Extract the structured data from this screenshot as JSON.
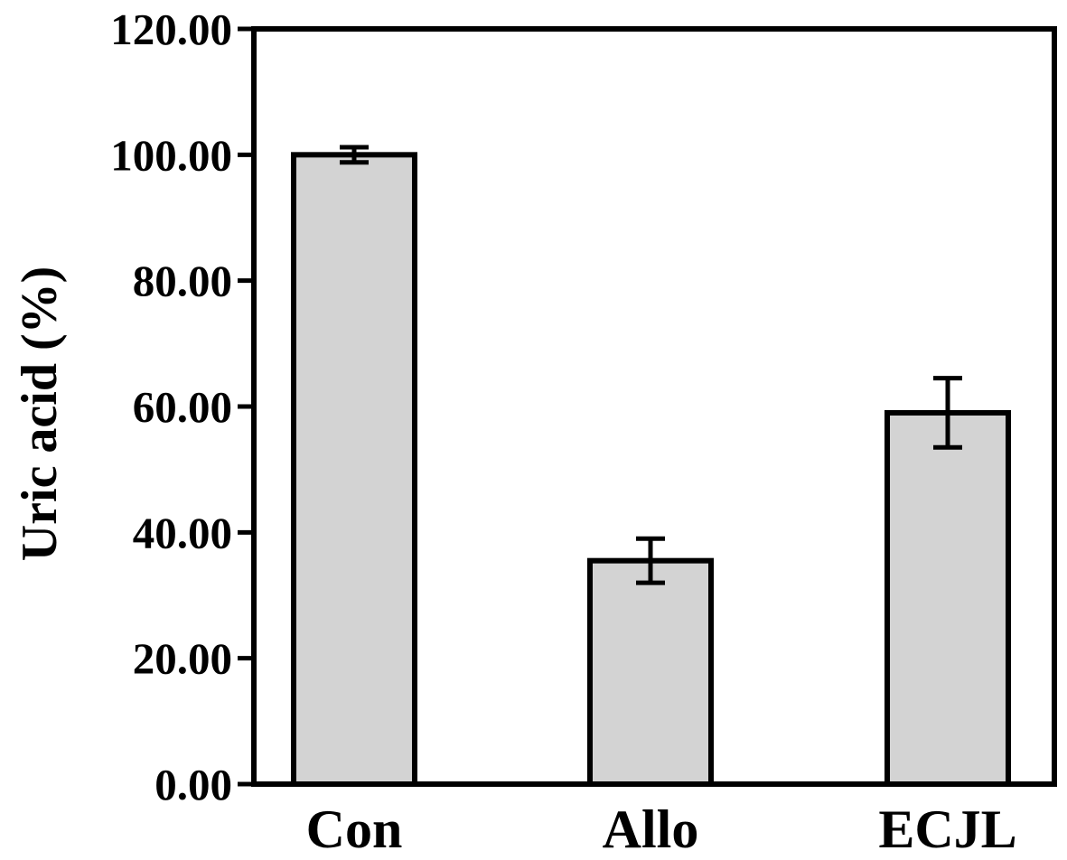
{
  "chart_data": {
    "type": "bar",
    "title": "",
    "xlabel": "",
    "ylabel": "Uric acid (%)",
    "categories": [
      "Con",
      "Allo",
      "ECJL"
    ],
    "values": [
      100.0,
      35.5,
      59.0
    ],
    "errors": [
      1.2,
      3.5,
      5.5
    ],
    "ylim": [
      0,
      120
    ],
    "yticks": [
      0,
      20,
      40,
      60,
      80,
      100,
      120
    ],
    "ytick_labels": [
      "0.00",
      "20.00",
      "40.00",
      "60.00",
      "80.00",
      "100.00",
      "120.00"
    ],
    "bar_color": "#d3d3d3",
    "edge_color": "#000000",
    "grid": false,
    "legend": "none"
  }
}
